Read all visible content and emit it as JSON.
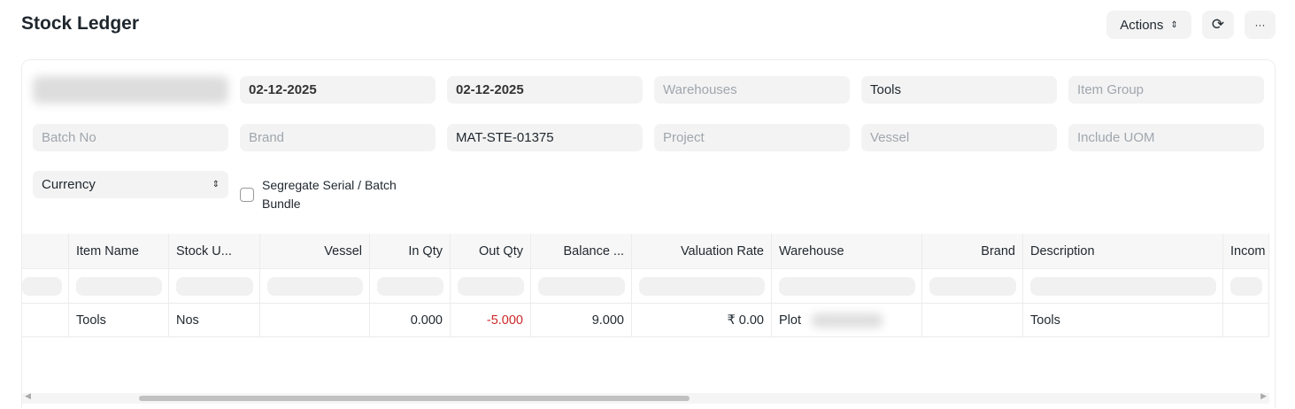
{
  "header": {
    "title": "Stock Ledger",
    "actions_label": "Actions",
    "refresh_icon": "refresh-icon",
    "more_icon": "more-icon"
  },
  "filters": {
    "company": "",
    "from_date": "02-12-2025",
    "to_date": "02-12-2025",
    "warehouse_placeholder": "Warehouses",
    "item": "Tools",
    "item_group_placeholder": "Item Group",
    "batch_placeholder": "Batch No",
    "brand_placeholder": "Brand",
    "voucher_no": "MAT-STE-01375",
    "project_placeholder": "Project",
    "vessel_placeholder": "Vessel",
    "uom_placeholder": "Include UOM",
    "currency": "Currency",
    "segregate_label": "Segregate Serial / Batch Bundle",
    "segregate_checked": false
  },
  "table": {
    "columns": [
      "",
      "Item Name",
      "Stock U...",
      "Vessel",
      "In Qty",
      "Out Qty",
      "Balance ...",
      "Valuation Rate",
      "Warehouse",
      "Brand",
      "Description",
      "Incom"
    ],
    "rows": [
      [
        "",
        "Tools",
        "Nos",
        "",
        "0.000",
        "-5.000",
        "9.000",
        "₹ 0.00",
        "Plot",
        "",
        "Tools",
        ""
      ]
    ],
    "negative_color": "#cc2929"
  }
}
